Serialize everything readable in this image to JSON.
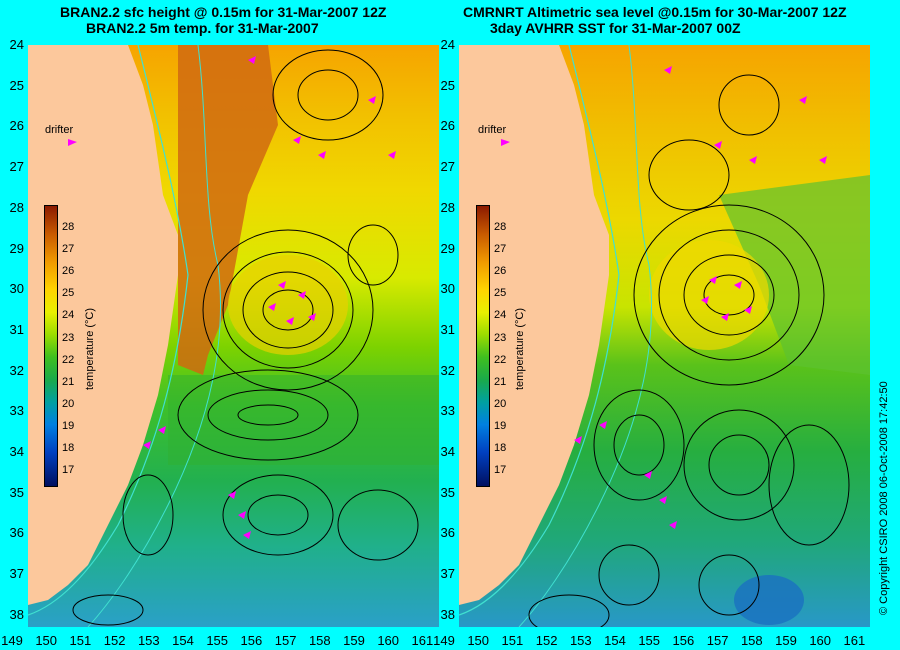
{
  "left_panel": {
    "title_line1": "BRAN2.2 sfc height @ 0.15m for 31-Mar-2007 12Z",
    "title_line2": "BRAN2.2 5m temp. for 31-Mar-2007",
    "drifter_label": "drifter",
    "colorbar_title": "temperature (°C)"
  },
  "right_panel": {
    "title_line1": "CMRNRT Altimetric sea level  @0.15m  for 30-Mar-2007 12Z",
    "title_line2": "3day AVHRR SST for 31-Mar-2007 00Z",
    "drifter_label": "drifter",
    "colorbar_title": "temperature (°C)"
  },
  "y_axis_labels": [
    "24",
    "25",
    "26",
    "27",
    "28",
    "29",
    "30",
    "31",
    "32",
    "33",
    "34",
    "35",
    "36",
    "37",
    "38"
  ],
  "x_axis_labels": [
    "149",
    "150",
    "151",
    "152",
    "153",
    "154",
    "155",
    "156",
    "157",
    "158",
    "159",
    "160",
    "161"
  ],
  "colorbar_labels": [
    "28",
    "27",
    "26",
    "25",
    "24",
    "23",
    "22",
    "21",
    "20",
    "19",
    "18",
    "17"
  ],
  "copyright": "© Copyright CSIRO 2008   06-Oct-2008 17:42:50",
  "colors": {
    "land": "#fcc89c",
    "frame": "#00ffff",
    "drifter": "#ff00ff",
    "contour": "#000000",
    "isobath": "#40e0d0"
  }
}
